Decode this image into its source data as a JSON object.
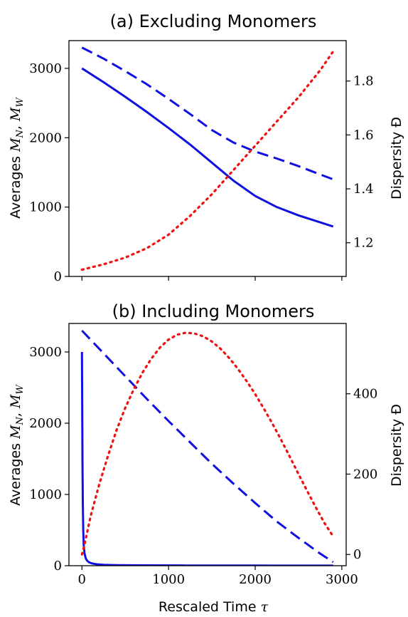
{
  "chart_data": [
    {
      "type": "line",
      "title": "(a) Excluding Monomers",
      "ylabel": "Averages M_N, M_W",
      "ylabel_text": "Averages ",
      "ylabel_math_1": "M",
      "ylabel_sub_1": "N",
      "ylabel_sep": ", ",
      "ylabel_math_2": "M",
      "ylabel_sub_2": "W",
      "y2label": "Dispersity Đ",
      "xlim": [
        -150,
        3050
      ],
      "ylim": [
        0,
        3400
      ],
      "y2lim": [
        1.075,
        1.95
      ],
      "xticks": [
        0,
        1000,
        2000,
        3000
      ],
      "xticks_labeled": false,
      "yticks": [
        0,
        1000,
        2000,
        3000
      ],
      "y2ticks": [
        1.2,
        1.4,
        1.6,
        1.8
      ],
      "y2tick_labels": [
        "1.2",
        "1.4",
        "1.6",
        "1.8"
      ],
      "grid": false,
      "series": [
        {
          "axis": "left",
          "style": "solid",
          "color": "#1010e0",
          "x": [
            0,
            250,
            500,
            750,
            1000,
            1250,
            1500,
            1750,
            2000,
            2250,
            2500,
            2750,
            2900
          ],
          "y": [
            3000,
            2800,
            2590,
            2370,
            2140,
            1900,
            1640,
            1380,
            1160,
            1000,
            880,
            780,
            720
          ]
        },
        {
          "axis": "left",
          "style": "dashed",
          "color": "#1010e0",
          "x": [
            0,
            250,
            500,
            750,
            1000,
            1250,
            1500,
            1750,
            2000,
            2250,
            2500,
            2750,
            2900
          ],
          "y": [
            3300,
            3140,
            2960,
            2770,
            2560,
            2340,
            2110,
            1930,
            1800,
            1700,
            1590,
            1470,
            1400
          ]
        },
        {
          "axis": "right",
          "style": "dotted",
          "color": "#ee1111",
          "x": [
            0,
            250,
            500,
            750,
            1000,
            1250,
            1500,
            1750,
            2000,
            2250,
            2500,
            2750,
            2900
          ],
          "y": [
            1.1,
            1.12,
            1.145,
            1.18,
            1.23,
            1.3,
            1.38,
            1.47,
            1.56,
            1.65,
            1.74,
            1.84,
            1.91
          ]
        }
      ]
    },
    {
      "type": "line",
      "title": "(b) Including Monomers",
      "xlabel": "Rescaled Time τ",
      "xlabel_text": "Rescaled Time ",
      "xlabel_math": "τ",
      "ylabel": "Averages M_N, M_W",
      "ylabel_text": "Averages ",
      "ylabel_math_1": "M",
      "ylabel_sub_1": "N",
      "ylabel_sep": ", ",
      "ylabel_math_2": "M",
      "ylabel_sub_2": "W",
      "y2label": "Dispersity Đ",
      "xlim": [
        -150,
        3050
      ],
      "ylim": [
        0,
        3400
      ],
      "y2lim": [
        -28,
        575
      ],
      "xticks": [
        0,
        1000,
        2000,
        3000
      ],
      "xtick_labels": [
        "0",
        "1000",
        "2000",
        "3000"
      ],
      "xticks_labeled": true,
      "yticks": [
        0,
        1000,
        2000,
        3000
      ],
      "y2ticks": [
        0,
        200,
        400
      ],
      "y2tick_labels": [
        "0",
        "200",
        "400"
      ],
      "grid": false,
      "series": [
        {
          "axis": "left",
          "style": "solid",
          "color": "#1010e0",
          "x": [
            0,
            3,
            6,
            10,
            15,
            20,
            30,
            45,
            60,
            80,
            100,
            130,
            170,
            250,
            400,
            700,
            1200,
            2000,
            2900
          ],
          "y": [
            3000,
            2300,
            1500,
            900,
            500,
            300,
            170,
            100,
            70,
            50,
            38,
            28,
            20,
            13,
            8,
            5,
            3,
            2,
            1
          ]
        },
        {
          "axis": "left",
          "style": "dashed",
          "color": "#1010e0",
          "x": [
            0,
            250,
            500,
            750,
            1000,
            1250,
            1500,
            1750,
            2000,
            2250,
            2500,
            2750,
            2900
          ],
          "y": [
            3300,
            2980,
            2660,
            2340,
            2030,
            1730,
            1430,
            1150,
            880,
            620,
            390,
            170,
            50
          ]
        },
        {
          "axis": "right",
          "style": "dotted",
          "color": "#ee1111",
          "x": [
            0,
            10,
            25,
            50,
            100,
            200,
            300,
            400,
            500,
            600,
            700,
            800,
            900,
            1000,
            1100,
            1200,
            1300,
            1400,
            1500,
            1600,
            1700,
            1800,
            1900,
            2000,
            2100,
            2200,
            2300,
            2400,
            2500,
            2600,
            2700,
            2800,
            2900
          ],
          "y": [
            0,
            8,
            20,
            45,
            95,
            175,
            245,
            310,
            365,
            412,
            453,
            487,
            515,
            535,
            547,
            552,
            550,
            543,
            530,
            512,
            489,
            462,
            432,
            399,
            363,
            325,
            285,
            243,
            200,
            158,
            117,
            78,
            45
          ]
        }
      ]
    }
  ]
}
